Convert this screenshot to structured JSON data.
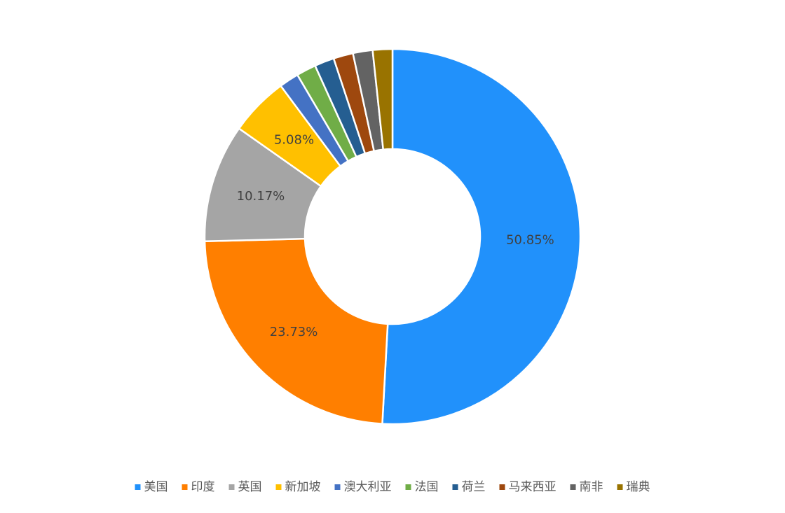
{
  "chart_data": {
    "type": "donut",
    "categories": [
      "美国",
      "印度",
      "英国",
      "新加坡",
      "澳大利亚",
      "法国",
      "荷兰",
      "马来西亚",
      "南非",
      "瑞典"
    ],
    "values": [
      50.85,
      23.73,
      10.17,
      5.08,
      1.69,
      1.69,
      1.69,
      1.69,
      1.69,
      1.69
    ],
    "value_labels": [
      "50.85%",
      "23.73%",
      "10.17%",
      "5.08%",
      null,
      null,
      null,
      null,
      null,
      null
    ],
    "colors": [
      "#2191fb",
      "#ff7f00",
      "#a5a5a5",
      "#ffc000",
      "#4472c4",
      "#70ad47",
      "#255e91",
      "#9e480e",
      "#636363",
      "#997300"
    ],
    "legend": "bottom"
  }
}
